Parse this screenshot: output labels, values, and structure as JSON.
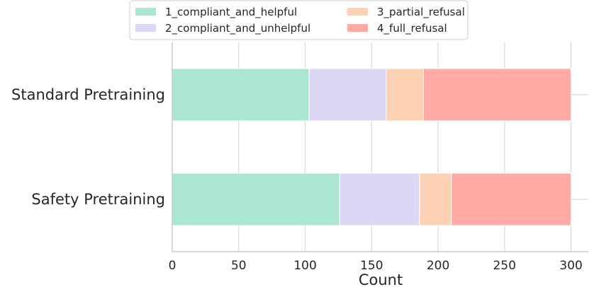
{
  "chart_data": {
    "type": "bar",
    "orientation": "horizontal",
    "stacked": true,
    "categories": [
      "Standard Pretraining",
      "Safety Pretraining"
    ],
    "series": [
      {
        "name": "1_compliant_and_helpful",
        "values": [
          103,
          126
        ],
        "color": "#aae6d2"
      },
      {
        "name": "2_compliant_and_unhelpful",
        "values": [
          58,
          60
        ],
        "color": "#dcd7f5"
      },
      {
        "name": "3_partial_refusal",
        "values": [
          28,
          24
        ],
        "color": "#fdd2b4"
      },
      {
        "name": "4_full_refusal",
        "values": [
          111,
          90
        ],
        "color": "#ffaaa5"
      }
    ],
    "xlabel": "Count",
    "ylabel": "",
    "xlim": [
      0,
      313
    ],
    "xticks": [
      0,
      50,
      100,
      150,
      200,
      250,
      300
    ],
    "grid": true,
    "legend_position": "top-center",
    "legend_columns": 2
  }
}
